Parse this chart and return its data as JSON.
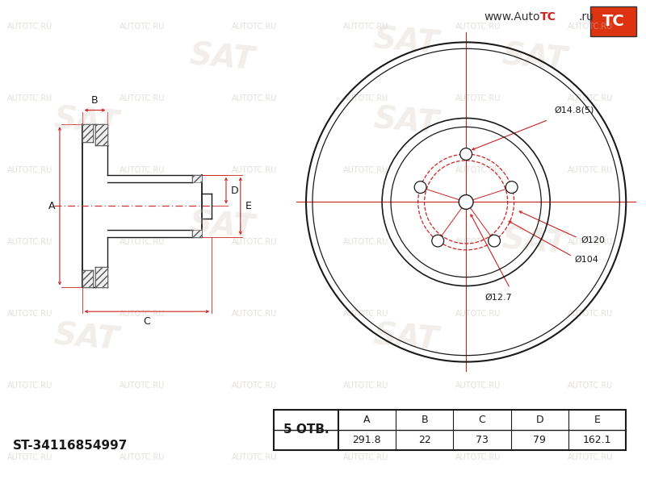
{
  "bg_color": "#ffffff",
  "line_color": "#1a1a1a",
  "red_color": "#cc2222",
  "part_number": "ST-34116854997",
  "holes_label": "5 ОТВ.",
  "table_headers": [
    "A",
    "B",
    "C",
    "D",
    "E"
  ],
  "table_values": [
    "291.8",
    "22",
    "73",
    "79",
    "162.1"
  ],
  "bolt_hole_label": "Ø14.8(5)",
  "bolt_circle_label": "Ø120",
  "inner_ring_label": "Ø104",
  "center_label": "Ø12.7",
  "watermark_text": "AUTOTC.RU",
  "logo_text": "www.AutoTC.ru",
  "sat_watermark": "SAT"
}
